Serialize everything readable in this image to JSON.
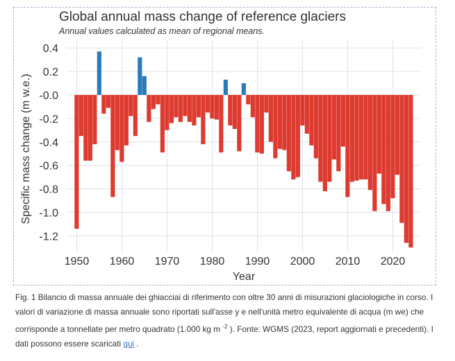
{
  "chart_data": {
    "type": "bar",
    "title": "Global annual mass change of reference glaciers",
    "subtitle": "Annual values calculated as mean of regional means.",
    "xlabel": "Year",
    "ylabel": "Specific mass change (m w.e.)",
    "ylim": [
      -1.35,
      0.45
    ],
    "xlim": [
      1947,
      2026
    ],
    "x_ticks": [
      1950,
      1960,
      1970,
      1980,
      1990,
      2000,
      2010,
      2020
    ],
    "y_ticks": [
      0.4,
      0.2,
      0.0,
      -0.2,
      -0.4,
      -0.6,
      -0.8,
      -1.0,
      -1.2
    ],
    "y_tick_labels": [
      "0.4",
      "0.2",
      "-0.0",
      "-0.2",
      "-0.4",
      "-0.6",
      "-0.8",
      "-1.0",
      "-1.2"
    ],
    "grid": true,
    "colors": {
      "positive": "#2b7bba",
      "negative": "#dd3b30",
      "grid": "#dde2ea",
      "axis_text": "#333333"
    },
    "x": [
      1950,
      1951,
      1952,
      1953,
      1954,
      1955,
      1956,
      1957,
      1958,
      1959,
      1960,
      1961,
      1962,
      1963,
      1964,
      1965,
      1966,
      1967,
      1968,
      1969,
      1970,
      1971,
      1972,
      1973,
      1974,
      1975,
      1976,
      1977,
      1978,
      1979,
      1980,
      1981,
      1982,
      1983,
      1984,
      1985,
      1986,
      1987,
      1988,
      1989,
      1990,
      1991,
      1992,
      1993,
      1994,
      1995,
      1996,
      1997,
      1998,
      1999,
      2000,
      2001,
      2002,
      2003,
      2004,
      2005,
      2006,
      2007,
      2008,
      2009,
      2010,
      2011,
      2012,
      2013,
      2014,
      2015,
      2016,
      2017,
      2018,
      2019,
      2020,
      2021,
      2022,
      2023,
      2024
    ],
    "values": [
      -1.14,
      -0.35,
      -0.56,
      -0.56,
      -0.42,
      0.37,
      -0.16,
      -0.11,
      -0.87,
      -0.47,
      -0.57,
      -0.43,
      -0.18,
      -0.35,
      0.32,
      0.16,
      -0.23,
      -0.12,
      -0.08,
      -0.49,
      -0.3,
      -0.24,
      -0.19,
      -0.23,
      -0.18,
      -0.23,
      -0.26,
      -0.19,
      -0.42,
      -0.15,
      -0.2,
      -0.21,
      -0.49,
      0.13,
      -0.26,
      -0.29,
      -0.48,
      0.1,
      -0.08,
      -0.19,
      -0.49,
      -0.5,
      -0.15,
      -0.4,
      -0.54,
      -0.46,
      -0.47,
      -0.65,
      -0.72,
      -0.7,
      -0.26,
      -0.33,
      -0.43,
      -0.54,
      -0.74,
      -0.82,
      -0.74,
      -0.55,
      -0.65,
      -0.44,
      -0.87,
      -0.74,
      -0.73,
      -0.72,
      -0.72,
      -0.81,
      -0.99,
      -0.67,
      -0.93,
      -0.99,
      -0.88,
      -0.68,
      -1.09,
      -1.26,
      -1.3
    ]
  },
  "caption": {
    "text_before_sup": "Fig. 1 Bilancio di massa annuale dei ghiacciai di riferimento con oltre 30 anni di misurazioni glaciologiche in corso. I valori di variazione di massa annuale sono riportati sull'asse y e nell'unità metro equivalente di acqua (m we) che corrisponde a tonnellate per metro quadrato (1.000 kg m ",
    "superscript": "-2",
    "text_after_sup": " ). Fonte: WGMS (2023, report aggiornati e precedenti). I dati possono essere scaricati ",
    "link_text": "qui",
    "trailing": " ."
  }
}
